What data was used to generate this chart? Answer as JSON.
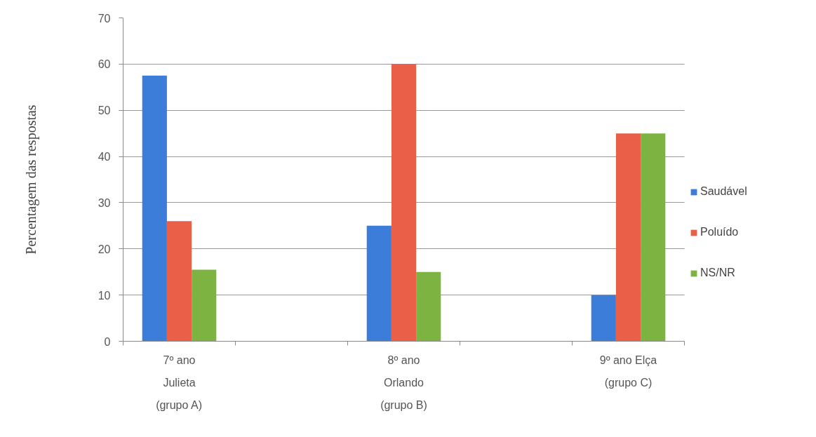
{
  "chart_data": {
    "type": "bar",
    "ylabel": "Percentagem das respostas",
    "categories": [
      "7º ano\nJulieta\n(grupo A)",
      null,
      "8º ano\nOrlando\n(grupo B)",
      null,
      "9º ano Elça\n(grupo C)"
    ],
    "series": [
      {
        "name": "Saudável",
        "color": "#3b7dd8",
        "values": [
          57.5,
          null,
          25,
          null,
          10
        ]
      },
      {
        "name": "Poluído",
        "color": "#ea5f48",
        "values": [
          26,
          null,
          60,
          null,
          45
        ]
      },
      {
        "name": "NS/NR",
        "color": "#7db441",
        "values": [
          15.5,
          null,
          15,
          null,
          45
        ]
      }
    ],
    "ylim": [
      0,
      70
    ],
    "yticks": [
      0,
      10,
      20,
      30,
      40,
      50,
      60,
      70
    ],
    "grid": "y",
    "legend": "right"
  }
}
